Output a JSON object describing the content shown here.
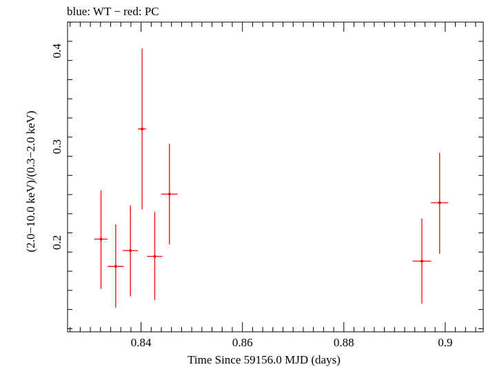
{
  "chart_data": {
    "type": "scatter",
    "title": "blue: WT − red: PC",
    "xlabel": "Time Since 59156.0 MJD (days)",
    "ylabel": "(2.0−10.0 keV)/(0.3−2.0 keV)",
    "xlim": [
      0.8255,
      0.9075
    ],
    "ylim": [
      0.1067,
      0.4301
    ],
    "x_ticks": [
      0.84,
      0.86,
      0.88,
      0.9
    ],
    "x_tick_labels": [
      "0.84",
      "0.86",
      "0.88",
      "0.9"
    ],
    "y_ticks": [
      0.2,
      0.3,
      0.4
    ],
    "y_tick_labels": [
      "0.2",
      "0.3",
      "0.4"
    ],
    "grid": false,
    "series": [
      {
        "name": "PC",
        "color": "#ff0000",
        "points": [
          {
            "x": 0.8321,
            "xerr": 0.0013,
            "y": 0.2035,
            "yerr_low": 0.052,
            "yerr_high": 0.051
          },
          {
            "x": 0.835,
            "xerr": 0.0016,
            "y": 0.175,
            "yerr_low": 0.043,
            "yerr_high": 0.044
          },
          {
            "x": 0.8379,
            "xerr": 0.0015,
            "y": 0.1915,
            "yerr_low": 0.0475,
            "yerr_high": 0.047
          },
          {
            "x": 0.8402,
            "xerr": 0.0008,
            "y": 0.3185,
            "yerr_low": 0.084,
            "yerr_high": 0.084
          },
          {
            "x": 0.8427,
            "xerr": 0.0015,
            "y": 0.1855,
            "yerr_low": 0.0455,
            "yerr_high": 0.0465
          },
          {
            "x": 0.8456,
            "xerr": 0.0016,
            "y": 0.2505,
            "yerr_low": 0.0525,
            "yerr_high": 0.0525
          },
          {
            "x": 0.8954,
            "xerr": 0.0018,
            "y": 0.1805,
            "yerr_low": 0.0445,
            "yerr_high": 0.0445
          },
          {
            "x": 0.8989,
            "xerr": 0.0017,
            "y": 0.2415,
            "yerr_low": 0.0535,
            "yerr_high": 0.052
          }
        ]
      }
    ]
  }
}
